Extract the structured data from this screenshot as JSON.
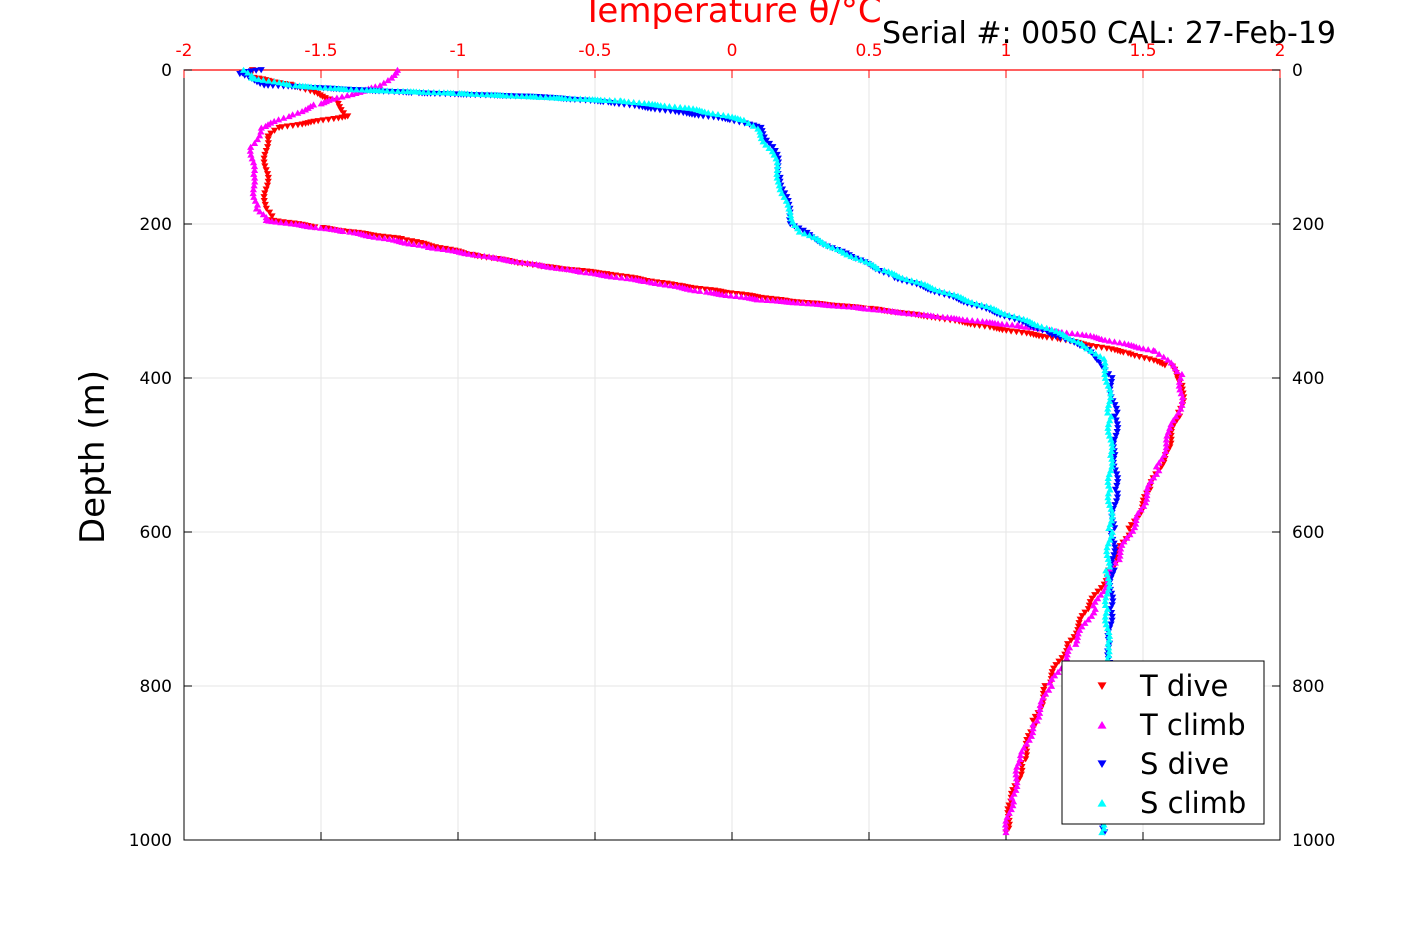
{
  "chart_data": {
    "type": "scatter",
    "title": "Temperature θ/°C",
    "serial": "Serial #: 0050  CAL: 27-Feb-19",
    "xlabel": "Temperature θ/°C",
    "ylabel": "Depth (m)",
    "xlim": [
      -2,
      2
    ],
    "ylim": [
      0,
      1000
    ],
    "y_reversed": true,
    "x_ticks": [
      "-2",
      "-1.5",
      "-1",
      "-0.5",
      "0",
      "0.5",
      "1",
      "1.5",
      "2"
    ],
    "y_ticks": [
      "0",
      "200",
      "400",
      "600",
      "800",
      "1000"
    ],
    "grid": true,
    "legend_position": "bottom-right",
    "series": [
      {
        "name": "T dive",
        "marker": "triangle-down",
        "color": "#ff0000",
        "points": [
          [
            -1.75,
            0
          ],
          [
            -1.75,
            10
          ],
          [
            -1.6,
            20
          ],
          [
            -1.45,
            40
          ],
          [
            -1.4,
            60
          ],
          [
            -1.65,
            75
          ],
          [
            -1.7,
            90
          ],
          [
            -1.7,
            120
          ],
          [
            -1.7,
            150
          ],
          [
            -1.7,
            180
          ],
          [
            -1.68,
            195
          ],
          [
            -1.5,
            205
          ],
          [
            -1.2,
            220
          ],
          [
            -0.95,
            240
          ],
          [
            -0.7,
            255
          ],
          [
            -0.45,
            265
          ],
          [
            -0.2,
            280
          ],
          [
            0.0,
            290
          ],
          [
            0.2,
            300
          ],
          [
            0.5,
            310
          ],
          [
            0.75,
            322
          ],
          [
            0.95,
            335
          ],
          [
            1.2,
            350
          ],
          [
            1.45,
            368
          ],
          [
            1.6,
            385
          ],
          [
            1.65,
            410
          ],
          [
            1.63,
            450
          ],
          [
            1.58,
            500
          ],
          [
            1.52,
            550
          ],
          [
            1.45,
            600
          ],
          [
            1.38,
            650
          ],
          [
            1.3,
            700
          ],
          [
            1.22,
            750
          ],
          [
            1.15,
            800
          ],
          [
            1.1,
            850
          ],
          [
            1.06,
            900
          ],
          [
            1.02,
            950
          ],
          [
            1.0,
            990
          ]
        ]
      },
      {
        "name": "T climb",
        "marker": "triangle-up",
        "color": "#ff00ff",
        "points": [
          [
            -1.22,
            0
          ],
          [
            -1.28,
            20
          ],
          [
            -1.38,
            30
          ],
          [
            -1.52,
            45
          ],
          [
            -1.62,
            60
          ],
          [
            -1.72,
            75
          ],
          [
            -1.75,
            100
          ],
          [
            -1.75,
            140
          ],
          [
            -1.73,
            180
          ],
          [
            -1.7,
            195
          ],
          [
            -1.4,
            210
          ],
          [
            -1.1,
            230
          ],
          [
            -0.85,
            245
          ],
          [
            -0.55,
            262
          ],
          [
            -0.3,
            275
          ],
          [
            -0.1,
            288
          ],
          [
            0.1,
            298
          ],
          [
            0.45,
            308
          ],
          [
            0.75,
            320
          ],
          [
            1.05,
            332
          ],
          [
            1.3,
            345
          ],
          [
            1.55,
            365
          ],
          [
            1.64,
            395
          ],
          [
            1.64,
            430
          ],
          [
            1.6,
            470
          ],
          [
            1.55,
            520
          ],
          [
            1.48,
            580
          ],
          [
            1.4,
            640
          ],
          [
            1.32,
            700
          ],
          [
            1.24,
            750
          ],
          [
            1.16,
            800
          ],
          [
            1.1,
            850
          ],
          [
            1.05,
            900
          ],
          [
            1.02,
            950
          ],
          [
            1.0,
            990
          ]
        ]
      },
      {
        "name": "S dive",
        "marker": "triangle-down",
        "color": "#0000ff",
        "points": [
          [
            -1.72,
            0
          ],
          [
            -1.8,
            5
          ],
          [
            -1.7,
            20
          ],
          [
            -1.15,
            30
          ],
          [
            -0.7,
            35
          ],
          [
            -0.45,
            42
          ],
          [
            -0.2,
            55
          ],
          [
            0.0,
            65
          ],
          [
            0.1,
            75
          ],
          [
            0.15,
            100
          ],
          [
            0.18,
            140
          ],
          [
            0.2,
            175
          ],
          [
            0.22,
            200
          ],
          [
            0.3,
            220
          ],
          [
            0.45,
            245
          ],
          [
            0.6,
            270
          ],
          [
            0.8,
            295
          ],
          [
            1.0,
            320
          ],
          [
            1.15,
            340
          ],
          [
            1.28,
            360
          ],
          [
            1.35,
            380
          ],
          [
            1.38,
            400
          ],
          [
            1.4,
            450
          ],
          [
            1.4,
            500
          ],
          [
            1.4,
            550
          ],
          [
            1.39,
            600
          ],
          [
            1.39,
            650
          ],
          [
            1.38,
            700
          ],
          [
            1.38,
            750
          ],
          [
            1.37,
            800
          ],
          [
            1.37,
            850
          ],
          [
            1.36,
            900
          ],
          [
            1.36,
            950
          ],
          [
            1.36,
            990
          ]
        ]
      },
      {
        "name": "S climb",
        "marker": "triangle-up",
        "color": "#00ffff",
        "points": [
          [
            -1.78,
            0
          ],
          [
            -1.75,
            10
          ],
          [
            -1.6,
            20
          ],
          [
            -1.4,
            25
          ],
          [
            -1.0,
            30
          ],
          [
            -0.7,
            35
          ],
          [
            -0.4,
            40
          ],
          [
            -0.15,
            50
          ],
          [
            0.05,
            65
          ],
          [
            0.1,
            80
          ],
          [
            0.15,
            110
          ],
          [
            0.18,
            150
          ],
          [
            0.2,
            180
          ],
          [
            0.25,
            210
          ],
          [
            0.4,
            235
          ],
          [
            0.55,
            260
          ],
          [
            0.75,
            285
          ],
          [
            0.95,
            310
          ],
          [
            1.15,
            335
          ],
          [
            1.28,
            355
          ],
          [
            1.35,
            375
          ],
          [
            1.37,
            400
          ],
          [
            1.38,
            450
          ],
          [
            1.38,
            500
          ],
          [
            1.38,
            550
          ],
          [
            1.38,
            600
          ],
          [
            1.37,
            650
          ],
          [
            1.37,
            700
          ],
          [
            1.37,
            750
          ],
          [
            1.36,
            800
          ],
          [
            1.36,
            850
          ],
          [
            1.35,
            900
          ],
          [
            1.35,
            950
          ],
          [
            1.35,
            990
          ]
        ]
      }
    ]
  }
}
